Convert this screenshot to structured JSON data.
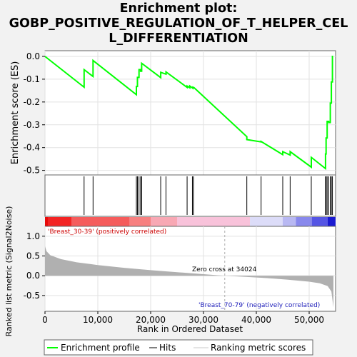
{
  "title": "Enrichment plot:\nGOBP_POSITIVE_REGULATION_OF_T_HELPER_CEL\nL_DIFFERENTIATION",
  "colors": {
    "curve": "#00ff00",
    "background": "#f2f2f2",
    "panel": "#ffffff",
    "metric_fill": "#b0b0b0",
    "pos_label": "#cc0000",
    "neg_label": "#2222bb"
  },
  "chart_data": {
    "type": "line",
    "xlabel": "Rank in Ordered Dataset",
    "x_ticks": [
      0,
      10000,
      20000,
      30000,
      40000,
      50000
    ],
    "x_tick_labels": [
      "0",
      "10,000",
      "20,000",
      "30,000",
      "40,000",
      "50,000"
    ],
    "xlim": [
      0,
      55000
    ],
    "es_panel": {
      "ylabel": "Enrichment score (ES)",
      "ylim": [
        -0.52,
        0.025
      ],
      "y_ticks": [
        0.0,
        -0.1,
        -0.2,
        -0.3,
        -0.4,
        -0.5
      ],
      "y_tick_labels": [
        "0.0",
        "-0.1",
        "-0.2",
        "-0.3",
        "-0.4",
        "-0.5"
      ],
      "series": [
        {
          "name": "Enrichment profile",
          "x": [
            0,
            7400,
            7400,
            9100,
            9100,
            17300,
            17300,
            17500,
            17500,
            17800,
            17800,
            18100,
            18100,
            18300,
            18300,
            21900,
            21900,
            22900,
            22900,
            26900,
            26900,
            27400,
            27400,
            28000,
            28000,
            28200,
            28200,
            38200,
            38200,
            40900,
            40900,
            45000,
            45000,
            46400,
            46400,
            50400,
            50400,
            53100,
            53100,
            53200,
            53200,
            53400,
            53400,
            53700,
            53700,
            54000,
            54000,
            54200,
            54200,
            54400,
            54400
          ],
          "y": [
            0.0,
            -0.135,
            -0.058,
            -0.088,
            -0.018,
            -0.168,
            -0.132,
            -0.132,
            -0.092,
            -0.092,
            -0.058,
            -0.058,
            -0.065,
            -0.065,
            -0.03,
            -0.093,
            -0.07,
            -0.078,
            -0.068,
            -0.136,
            -0.13,
            -0.138,
            -0.13,
            -0.14,
            -0.135,
            -0.137,
            -0.137,
            -0.352,
            -0.365,
            -0.375,
            -0.373,
            -0.431,
            -0.418,
            -0.433,
            -0.418,
            -0.486,
            -0.443,
            -0.492,
            -0.428,
            -0.428,
            -0.358,
            -0.358,
            -0.285,
            -0.285,
            -0.29,
            -0.29,
            -0.205,
            -0.205,
            -0.112,
            -0.112,
            0.003
          ]
        }
      ]
    },
    "hits": [
      7400,
      9100,
      17300,
      17500,
      17800,
      18100,
      18300,
      21900,
      22900,
      26900,
      27900,
      28100,
      38200,
      40900,
      45000,
      46400,
      50400,
      53100,
      53200,
      53400,
      53700,
      54000,
      54200,
      54400
    ],
    "metric_panel": {
      "ylabel": "Ranked list metric (Signal2Noise)",
      "ylim": [
        -0.9,
        1.25
      ],
      "y_ticks": [
        1.0,
        0.5,
        0.0,
        -0.5
      ],
      "y_tick_labels": [
        "1.0",
        "0.5",
        "0.0",
        "-0.5"
      ],
      "zero_cross_label": "Zero cross at 34024",
      "zero_cross": 34024,
      "pos_label": "'Breast_30-39' (positively correlated)",
      "neg_label": "'Breast_70-79' (negatively correlated)",
      "profile": {
        "x": [
          0,
          300,
          1000,
          3000,
          6000,
          10000,
          15000,
          20000,
          25000,
          30000,
          34024,
          38000,
          42000,
          46000,
          50000,
          52000,
          53500,
          54200,
          54600
        ],
        "y": [
          0.75,
          0.62,
          0.52,
          0.42,
          0.34,
          0.27,
          0.2,
          0.14,
          0.09,
          0.04,
          0.0,
          -0.03,
          -0.06,
          -0.1,
          -0.15,
          -0.19,
          -0.26,
          -0.4,
          -0.8
        ]
      }
    },
    "legend": {
      "position": "bottom",
      "entries": [
        "Enrichment profile",
        "Hits",
        "Ranking metric scores"
      ]
    }
  }
}
